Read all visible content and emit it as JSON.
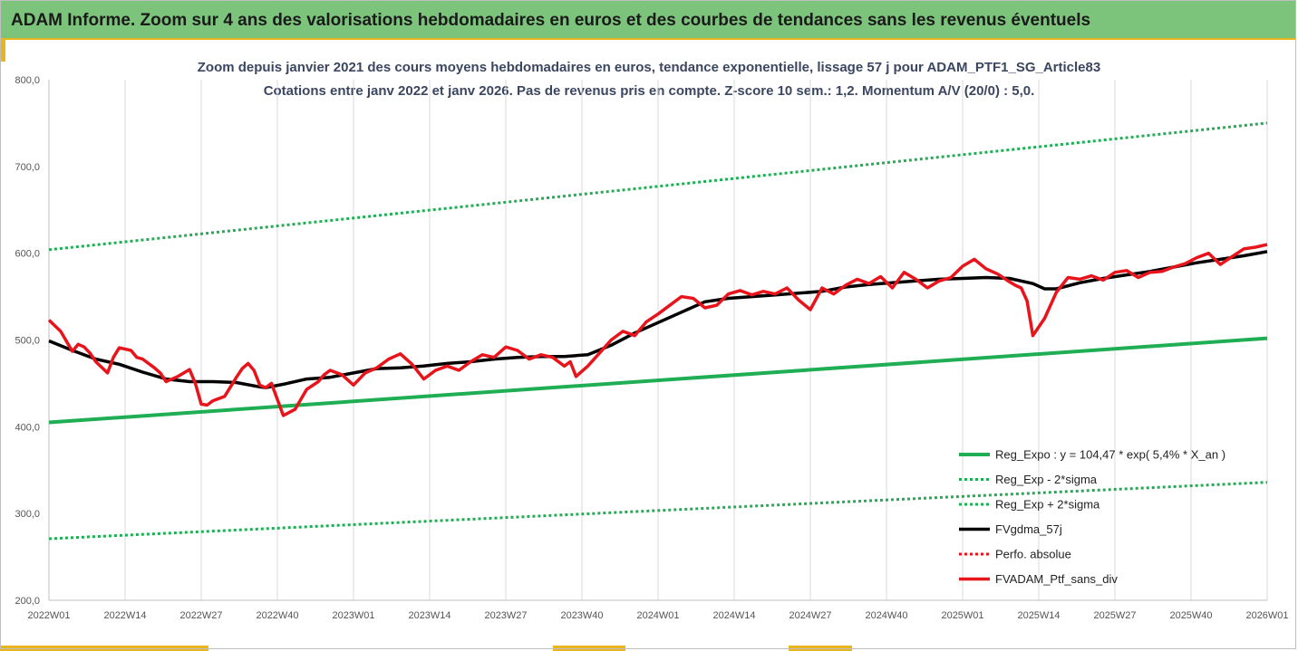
{
  "header": {
    "title": "ADAM Informe. Zoom sur 4 ans des valorisations hebdomadaires en euros et des courbes de tendances sans les revenus éventuels"
  },
  "chart_data": {
    "type": "line",
    "subtitle_line1": "Zoom depuis janvier 2021 des cours moyens hebdomadaires  en euros, tendance exponentielle, lissage 57 j pour ADAM_PTF1_SG_Article83",
    "subtitle_line2": "Cotations entre janv 2022 et janv 2026. Pas de revenus pris en compte. Z-score 10 sem.: 1,2. Momentum A/V (20/0) : 5,0.",
    "ylim": [
      200,
      800
    ],
    "y_ticks": [
      "200,0",
      "300,0",
      "400,0",
      "500,0",
      "600,0",
      "700,0",
      "800,0"
    ],
    "y_tick_values": [
      200,
      300,
      400,
      500,
      600,
      700,
      800
    ],
    "x_categories": [
      "2022W01",
      "2022W14",
      "2022W27",
      "2022W40",
      "2023W01",
      "2023W14",
      "2023W27",
      "2023W40",
      "2024W01",
      "2024W14",
      "2024W27",
      "2024W40",
      "2025W01",
      "2025W14",
      "2025W27",
      "2025W40",
      "2026W01"
    ],
    "grid": "vertical",
    "legend_position": "bottom-right",
    "colors": {
      "green": "#1fae54",
      "black": "#000000",
      "red": "#e8141b"
    },
    "series": [
      {
        "name": "Reg_Expo : y = 104,47 * exp( 5,4% *  X_an )",
        "style": "solid-green",
        "x": [
          0,
          208
        ],
        "values": [
          405,
          502
        ]
      },
      {
        "name": "Reg_Exp - 2*sigma",
        "style": "dotted-green",
        "x": [
          0,
          208
        ],
        "values": [
          271,
          336
        ]
      },
      {
        "name": "Reg_Exp + 2*sigma",
        "style": "dotted-green",
        "x": [
          0,
          208
        ],
        "values": [
          604,
          750
        ]
      },
      {
        "name": "FVgdma_57j",
        "style": "solid-black",
        "x": [
          0,
          4,
          8,
          12,
          16,
          20,
          24,
          28,
          32,
          36,
          37,
          40,
          44,
          48,
          52,
          56,
          60,
          64,
          68,
          72,
          76,
          80,
          84,
          88,
          92,
          96,
          100,
          104,
          108,
          112,
          116,
          120,
          124,
          128,
          132,
          136,
          140,
          144,
          148,
          152,
          156,
          160,
          164,
          168,
          170,
          172,
          176,
          180,
          184,
          188,
          192,
          196,
          200,
          204,
          208
        ],
        "values": [
          499,
          488,
          478,
          472,
          463,
          455,
          452,
          452,
          451,
          446,
          445,
          449,
          455,
          457,
          462,
          467,
          468,
          470,
          473,
          475,
          478,
          480,
          481,
          481,
          483,
          494,
          508,
          520,
          532,
          544,
          548,
          550,
          552,
          554,
          556,
          561,
          564,
          566,
          568,
          570,
          571,
          572,
          571,
          565,
          559,
          559,
          566,
          571,
          575,
          579,
          584,
          589,
          593,
          597,
          602
        ]
      },
      {
        "name": "Perfo. absolue",
        "style": "dotted-red",
        "x": [],
        "values": []
      },
      {
        "name": "FVADAM_Ptf_sans_div",
        "style": "solid-red",
        "x": [
          0,
          2,
          4,
          5,
          6,
          7,
          8,
          10,
          11,
          12,
          14,
          15,
          16,
          18,
          19,
          20,
          22,
          24,
          25,
          26,
          27,
          28,
          30,
          32,
          33,
          34,
          35,
          36,
          37,
          38,
          40,
          42,
          44,
          46,
          47,
          48,
          50,
          52,
          54,
          56,
          58,
          60,
          62,
          64,
          66,
          68,
          70,
          72,
          74,
          76,
          78,
          80,
          82,
          84,
          86,
          88,
          89,
          90,
          92,
          94,
          96,
          98,
          100,
          102,
          104,
          106,
          108,
          110,
          112,
          114,
          116,
          118,
          120,
          122,
          124,
          126,
          128,
          130,
          132,
          134,
          136,
          138,
          140,
          142,
          144,
          146,
          148,
          150,
          152,
          154,
          156,
          158,
          160,
          162,
          164,
          165,
          166,
          167,
          168,
          170,
          172,
          174,
          176,
          178,
          180,
          182,
          184,
          186,
          188,
          190,
          192,
          194,
          196,
          198,
          200,
          202,
          204,
          206,
          208
        ],
        "values": [
          523,
          510,
          487,
          495,
          492,
          485,
          475,
          462,
          480,
          491,
          488,
          480,
          478,
          468,
          462,
          452,
          458,
          466,
          450,
          426,
          425,
          430,
          435,
          457,
          467,
          473,
          465,
          448,
          445,
          450,
          413,
          420,
          443,
          452,
          460,
          465,
          460,
          448,
          462,
          468,
          478,
          484,
          472,
          455,
          465,
          470,
          465,
          475,
          483,
          480,
          492,
          488,
          478,
          483,
          480,
          470,
          475,
          458,
          470,
          485,
          500,
          510,
          505,
          521,
          530,
          540,
          550,
          548,
          537,
          540,
          553,
          557,
          552,
          556,
          553,
          560,
          546,
          535,
          560,
          553,
          563,
          570,
          565,
          573,
          560,
          578,
          570,
          560,
          568,
          572,
          585,
          593,
          582,
          576,
          567,
          563,
          560,
          545,
          505,
          525,
          555,
          572,
          570,
          574,
          569,
          578,
          580,
          572,
          578,
          579,
          584,
          588,
          595,
          600,
          587,
          596,
          605,
          607,
          610
        ]
      }
    ]
  }
}
